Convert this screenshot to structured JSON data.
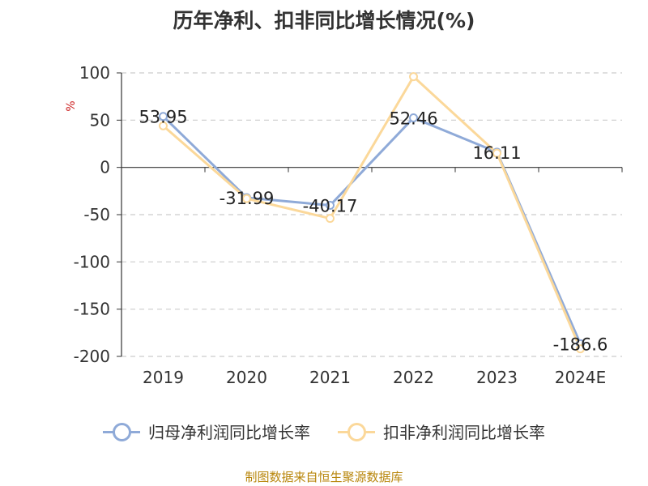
{
  "chart_data": {
    "type": "line",
    "title": "历年净利、扣非同比增长情况(%)",
    "ylabel": "%",
    "categories": [
      "2019",
      "2020",
      "2021",
      "2022",
      "2023",
      "2024E"
    ],
    "yticks": [
      100,
      50,
      0,
      -50,
      -100,
      -150,
      -200
    ],
    "ylim": [
      -200,
      100
    ],
    "grid": true,
    "legend_position": "bottom",
    "series": [
      {
        "name": "归母净利润同比增长率",
        "color": "#8faad8",
        "values": [
          53.95,
          -31.99,
          -40.17,
          52.46,
          16.11,
          -186.6
        ],
        "labels": [
          "53.95",
          "-31.99",
          "-40.17",
          "52.46",
          "16.11",
          "-186.6"
        ]
      },
      {
        "name": "扣非净利润同比增长率",
        "color": "#fbd89a",
        "values": [
          44,
          -33,
          -54,
          96,
          15,
          -192
        ]
      }
    ]
  },
  "source": "制图数据来自恒生聚源数据库"
}
